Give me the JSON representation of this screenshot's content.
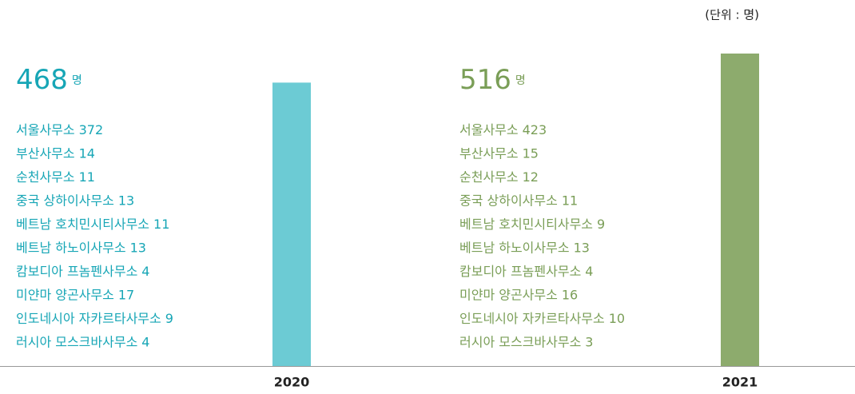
{
  "chart_data": {
    "type": "bar",
    "unit_label": "(단위 : 명)",
    "unit_suffix": "명",
    "categories": [
      "2020",
      "2021"
    ],
    "values": [
      468,
      516
    ],
    "colors": [
      "#6ccbd4",
      "#8dab6d"
    ],
    "text_colors": [
      "#17a6b6",
      "#7a9e57"
    ],
    "breakdown": [
      [
        {
          "name": "서울사무소",
          "value": 372
        },
        {
          "name": "부산사무소",
          "value": 14
        },
        {
          "name": "순천사무소",
          "value": 11
        },
        {
          "name": "중국 상하이사무소",
          "value": 13
        },
        {
          "name": "베트남 호치민시티사무소",
          "value": 11
        },
        {
          "name": "베트남 하노이사무소",
          "value": 13
        },
        {
          "name": "캄보디아 프놈펜사무소",
          "value": 4
        },
        {
          "name": "미얀마 양곤사무소",
          "value": 17
        },
        {
          "name": "인도네시아 자카르타사무소",
          "value": 9
        },
        {
          "name": "러시아 모스크바사무소",
          "value": 4
        }
      ],
      [
        {
          "name": "서울사무소",
          "value": 423
        },
        {
          "name": "부산사무소",
          "value": 15
        },
        {
          "name": "순천사무소",
          "value": 12
        },
        {
          "name": "중국 상하이사무소",
          "value": 11
        },
        {
          "name": "베트남 호치민시티사무소",
          "value": 9
        },
        {
          "name": "베트남 하노이사무소",
          "value": 13
        },
        {
          "name": "캄보디아 프놈펜사무소",
          "value": 4
        },
        {
          "name": "미얀마 양곤사무소",
          "value": 16
        },
        {
          "name": "인도네시아 자카르타사무소",
          "value": 10
        },
        {
          "name": "러시아 모스크바사무소",
          "value": 3
        }
      ]
    ]
  }
}
